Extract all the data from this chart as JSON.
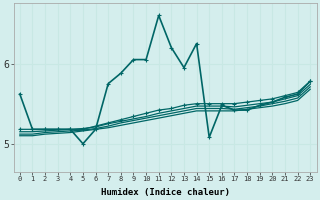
{
  "xlabel": "Humidex (Indice chaleur)",
  "ylabel": "",
  "bg_color": "#d4eeed",
  "line_color": "#006666",
  "grid_color": "#c8e8e4",
  "xmin": -0.5,
  "xmax": 23.5,
  "ymin": 4.65,
  "ymax": 6.75,
  "yticks": [
    5,
    6
  ],
  "xticks": [
    0,
    1,
    2,
    3,
    4,
    5,
    6,
    7,
    8,
    9,
    10,
    11,
    12,
    13,
    14,
    15,
    16,
    17,
    18,
    19,
    20,
    21,
    22,
    23
  ],
  "lines": [
    {
      "y": [
        5.62,
        5.18,
        5.18,
        5.18,
        5.18,
        5.0,
        5.18,
        5.75,
        5.88,
        6.05,
        6.05,
        6.6,
        6.2,
        5.95,
        6.25,
        5.08,
        5.48,
        5.42,
        5.42,
        5.48,
        5.52,
        5.58,
        5.62,
        5.78
      ],
      "lw": 1.2,
      "marker": true
    },
    {
      "y": [
        5.18,
        5.18,
        5.18,
        5.18,
        5.18,
        5.18,
        5.22,
        5.26,
        5.3,
        5.34,
        5.38,
        5.42,
        5.44,
        5.48,
        5.5,
        5.5,
        5.5,
        5.5,
        5.52,
        5.54,
        5.56,
        5.6,
        5.64,
        5.78
      ],
      "lw": 0.9,
      "marker": true
    },
    {
      "y": [
        5.15,
        5.15,
        5.16,
        5.17,
        5.18,
        5.19,
        5.21,
        5.25,
        5.28,
        5.31,
        5.34,
        5.38,
        5.41,
        5.44,
        5.47,
        5.47,
        5.47,
        5.46,
        5.48,
        5.5,
        5.52,
        5.56,
        5.6,
        5.74
      ],
      "lw": 0.9,
      "marker": false
    },
    {
      "y": [
        5.12,
        5.12,
        5.14,
        5.15,
        5.16,
        5.17,
        5.19,
        5.22,
        5.26,
        5.29,
        5.32,
        5.35,
        5.38,
        5.41,
        5.44,
        5.44,
        5.44,
        5.43,
        5.45,
        5.47,
        5.5,
        5.53,
        5.57,
        5.71
      ],
      "lw": 0.9,
      "marker": false
    },
    {
      "y": [
        5.1,
        5.1,
        5.12,
        5.13,
        5.14,
        5.16,
        5.18,
        5.2,
        5.23,
        5.26,
        5.29,
        5.32,
        5.35,
        5.38,
        5.41,
        5.41,
        5.41,
        5.41,
        5.43,
        5.45,
        5.47,
        5.5,
        5.54,
        5.68
      ],
      "lw": 0.9,
      "marker": false
    }
  ]
}
